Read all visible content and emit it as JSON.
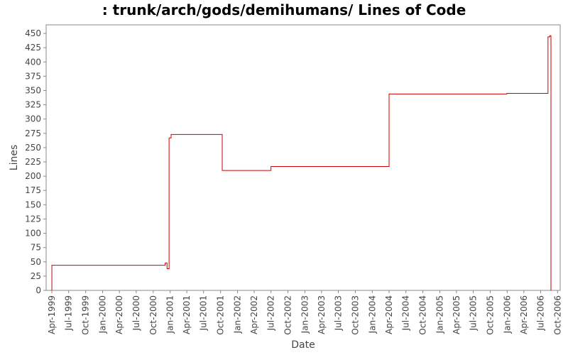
{
  "chart_data": {
    "type": "line",
    "title": ": trunk/arch/gods/demihumans/ Lines of Code",
    "xlabel": "Date",
    "ylabel": "Lines",
    "ylim": [
      0,
      465
    ],
    "yticks": [
      0,
      25,
      50,
      75,
      100,
      125,
      150,
      175,
      200,
      225,
      250,
      275,
      300,
      325,
      350,
      375,
      400,
      425,
      450
    ],
    "xlim": [
      "1999-03-01",
      "2006-10-15"
    ],
    "xticks": [
      "Apr-1999",
      "Jul-1999",
      "Oct-1999",
      "Jan-2000",
      "Apr-2000",
      "Jul-2000",
      "Oct-2000",
      "Jan-2001",
      "Apr-2001",
      "Jul-2001",
      "Oct-2001",
      "Jan-2002",
      "Apr-2002",
      "Jul-2002",
      "Oct-2002",
      "Jan-2003",
      "Apr-2003",
      "Jul-2003",
      "Oct-2003",
      "Jan-2004",
      "Apr-2004",
      "Jul-2004",
      "Oct-2004",
      "Jan-2005",
      "Apr-2005",
      "Jul-2005",
      "Oct-2005",
      "Jan-2006",
      "Apr-2006",
      "Jul-2006",
      "Oct-2006"
    ],
    "grid": false,
    "line_color": "#cc0000",
    "series": [
      {
        "step": true,
        "points": [
          [
            "1999-04-01",
            0
          ],
          [
            "1999-04-01",
            44
          ],
          [
            "2000-12-05",
            44
          ],
          [
            "2000-12-05",
            48
          ],
          [
            "2000-12-15",
            48
          ],
          [
            "2000-12-15",
            38
          ],
          [
            "2000-12-26",
            38
          ],
          [
            "2000-12-26",
            267
          ],
          [
            "2001-01-06",
            267
          ],
          [
            "2001-01-06",
            273
          ],
          [
            "2001-10-10",
            273
          ],
          [
            "2001-10-10",
            210
          ],
          [
            "2002-07-01",
            210
          ],
          [
            "2002-07-01",
            217
          ],
          [
            "2004-04-01",
            217
          ],
          [
            "2004-04-01",
            344
          ],
          [
            "2005-12-30",
            344
          ],
          [
            "2005-12-30",
            345
          ],
          [
            "2006-08-10",
            345
          ],
          [
            "2006-08-10",
            444
          ],
          [
            "2006-08-20",
            444
          ],
          [
            "2006-08-20",
            446
          ],
          [
            "2006-08-26",
            446
          ],
          [
            "2006-08-26",
            0
          ]
        ]
      }
    ]
  }
}
